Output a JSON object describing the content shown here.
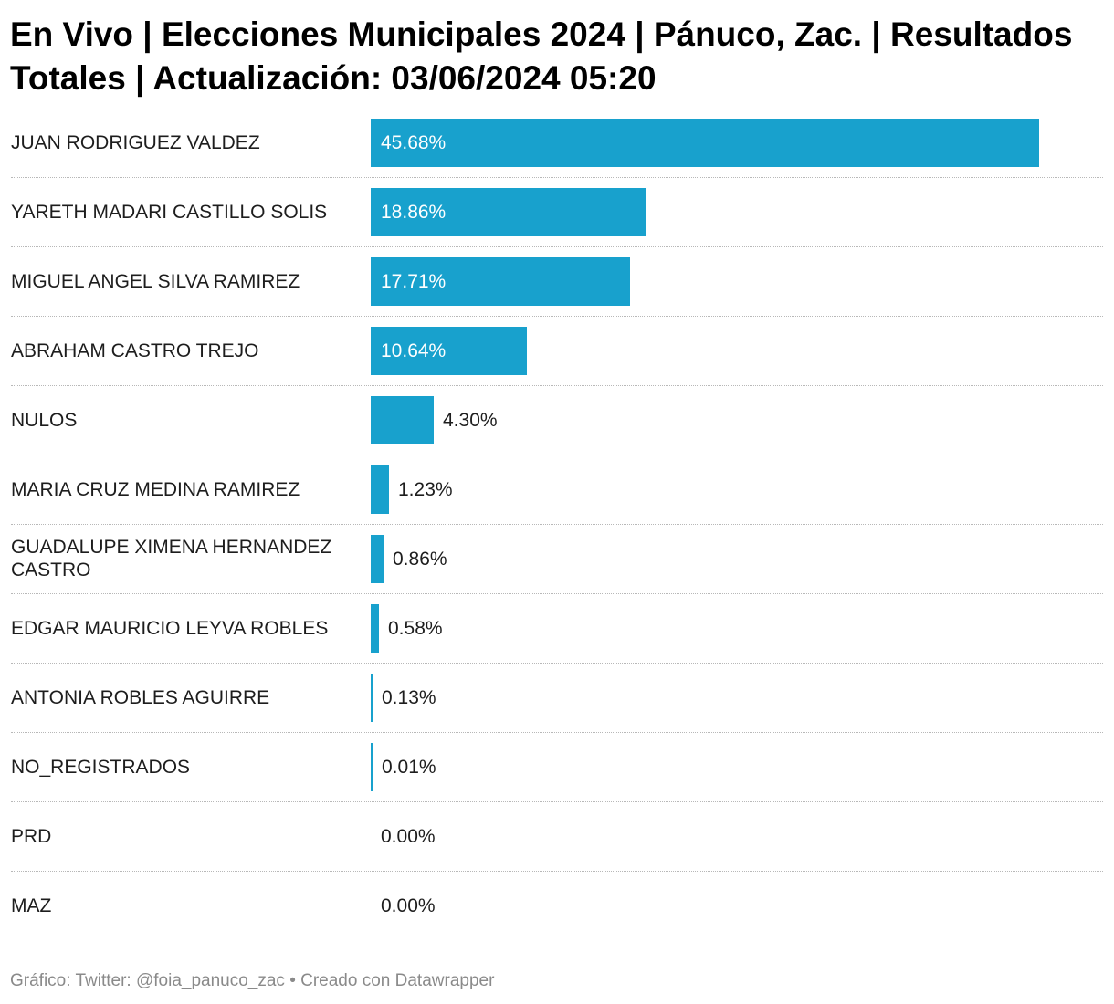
{
  "title": "En Vivo | Elecciones Municipales 2024 | Pánuco, Zac. | Resultados Totales | Actualización: 03/06/2024 05:20",
  "footer": "Gráfico: Twitter: @foia_panuco_zac • Creado con Datawrapper",
  "colors": {
    "bar": "#18a1cd",
    "separator": "#b8b8b8",
    "footer_text": "#8a8a8a"
  },
  "chart_data": {
    "type": "bar",
    "orientation": "horizontal",
    "title": "En Vivo | Elecciones Municipales 2024 | Pánuco, Zac. | Resultados Totales | Actualización: 03/06/2024 05:20",
    "xlabel": "",
    "ylabel": "",
    "xlim": [
      0,
      45.68
    ],
    "grid": false,
    "categories": [
      "JUAN RODRIGUEZ VALDEZ",
      "YARETH MADARI CASTILLO SOLIS",
      "MIGUEL ANGEL SILVA RAMIREZ",
      "ABRAHAM CASTRO TREJO",
      "NULOS",
      "MARIA CRUZ MEDINA RAMIREZ",
      "GUADALUPE XIMENA HERNANDEZ CASTRO",
      "EDGAR MAURICIO LEYVA ROBLES",
      "ANTONIA ROBLES AGUIRRE",
      "NO_REGISTRADOS",
      "PRD",
      "MAZ"
    ],
    "values": [
      45.68,
      18.86,
      17.71,
      10.64,
      4.3,
      1.23,
      0.86,
      0.58,
      0.13,
      0.01,
      0.0,
      0.0
    ],
    "value_labels": [
      "45.68%",
      "18.86%",
      "17.71%",
      "10.64%",
      "4.30%",
      "1.23%",
      "0.86%",
      "0.58%",
      "0.13%",
      "0.01%",
      "0.00%",
      "0.00%"
    ]
  }
}
